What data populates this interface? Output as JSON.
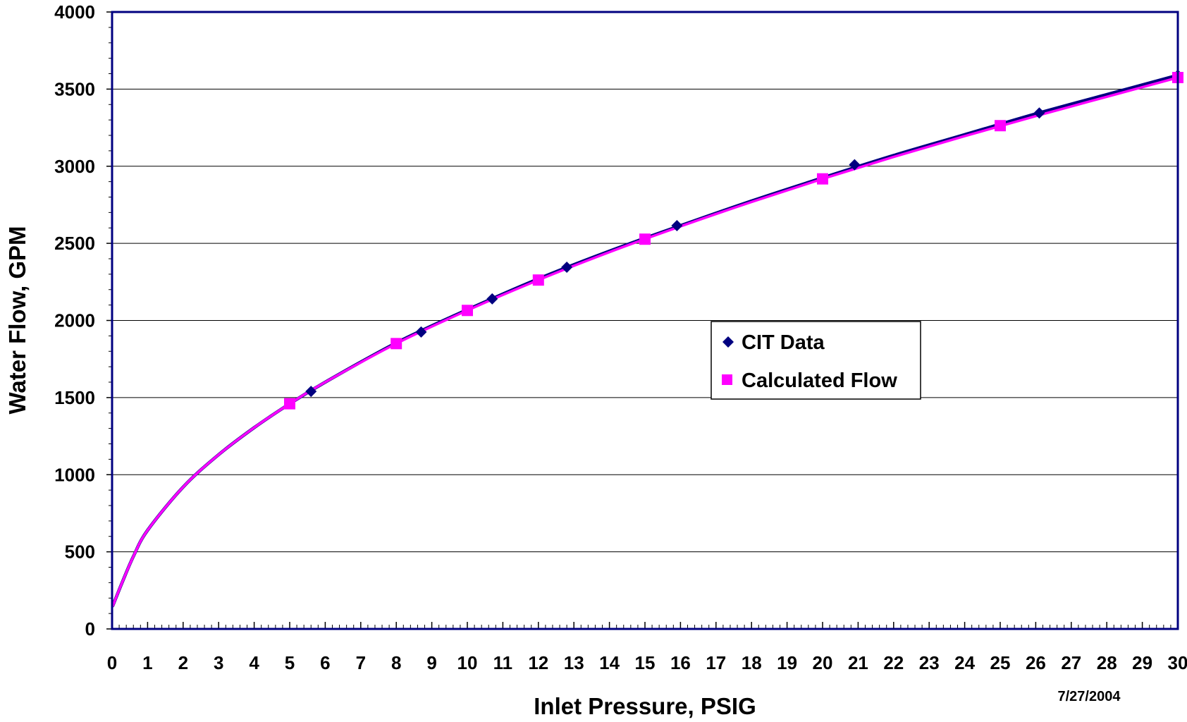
{
  "chart_data": {
    "type": "scatter",
    "xlabel": "Inlet Pressure, PSIG",
    "ylabel": "Water Flow, GPM",
    "xlim": [
      0,
      30
    ],
    "ylim": [
      0,
      4000
    ],
    "x_ticks": [
      "0",
      "1",
      "2",
      "3",
      "4",
      "5",
      "6",
      "7",
      "8",
      "9",
      "10",
      "11",
      "12",
      "13",
      "14",
      "15",
      "16",
      "17",
      "18",
      "19",
      "20",
      "21",
      "22",
      "23",
      "24",
      "25",
      "26",
      "27",
      "28",
      "29",
      "30"
    ],
    "y_ticks": [
      "0",
      "500",
      "1000",
      "1500",
      "2000",
      "2500",
      "3000",
      "3500",
      "4000"
    ],
    "grid": "horizontal",
    "legend_position": "center-right",
    "annotation": "7/27/2004",
    "series": [
      {
        "name": "CIT Data",
        "marker": "diamond",
        "color": "#000080",
        "points": [
          [
            5.6,
            1540
          ],
          [
            8.7,
            1925
          ],
          [
            10.7,
            2140
          ],
          [
            12.8,
            2345
          ],
          [
            15.9,
            2615
          ],
          [
            20.9,
            3010
          ],
          [
            26.1,
            3345
          ],
          [
            30.0,
            3590
          ]
        ],
        "trend": {
          "x": [
            0.02,
            0.3,
            0.6,
            1,
            2,
            3,
            4,
            5,
            6,
            8,
            10,
            12,
            14,
            16,
            18,
            20,
            22,
            24,
            26,
            28,
            30
          ],
          "y": [
            150,
            310,
            470,
            640,
            920,
            1130,
            1305,
            1460,
            1600,
            1855,
            2070,
            2270,
            2450,
            2615,
            2775,
            2925,
            3070,
            3205,
            3340,
            3465,
            3590
          ]
        }
      },
      {
        "name": "Calculated Flow",
        "marker": "square",
        "color": "#FF00FF",
        "points": [
          [
            5,
            1460
          ],
          [
            8,
            1850
          ],
          [
            10,
            2065
          ],
          [
            12,
            2262
          ],
          [
            15,
            2527
          ],
          [
            20,
            2918
          ],
          [
            25,
            3263
          ],
          [
            30,
            3575
          ]
        ],
        "trend": {
          "x": [
            0.02,
            0.3,
            0.6,
            1,
            2,
            3,
            4,
            5,
            6,
            8,
            10,
            12,
            14,
            16,
            18,
            20,
            22,
            24,
            26,
            28,
            30
          ],
          "y": [
            150,
            310,
            470,
            640,
            920,
            1130,
            1305,
            1460,
            1600,
            1850,
            2065,
            2262,
            2443,
            2610,
            2768,
            2918,
            3060,
            3195,
            3325,
            3450,
            3575
          ]
        }
      }
    ]
  },
  "colors": {
    "frame": "#000080",
    "gridline": "#000000",
    "background": "#ffffff"
  }
}
